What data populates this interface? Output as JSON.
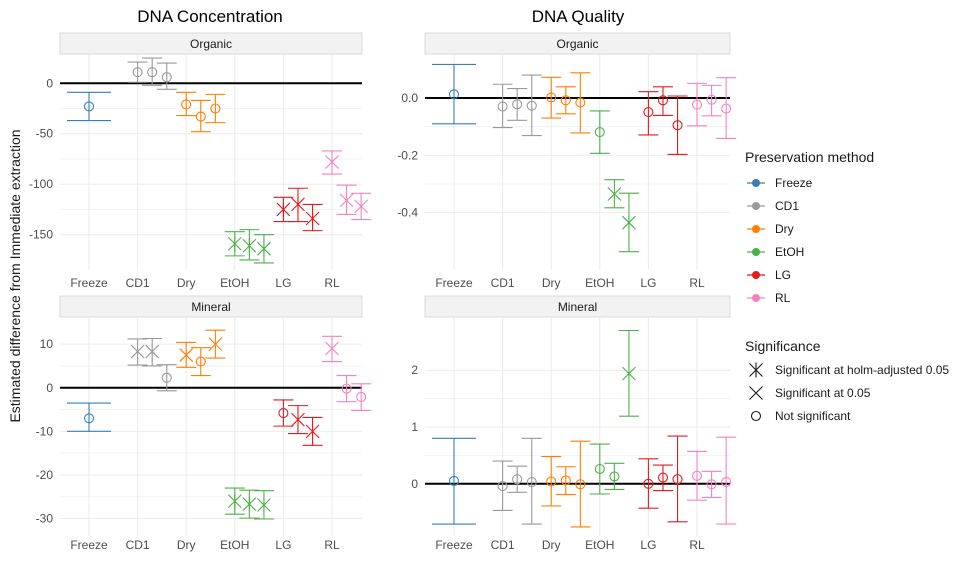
{
  "figure": {
    "ylabel": "Estimated difference from Immediate extraction",
    "legend": {
      "method_title": "Preservation method",
      "method_items": [
        {
          "label": "Freeze",
          "color": "#377eb8"
        },
        {
          "label": "CD1",
          "color": "#999999"
        },
        {
          "label": "Dry",
          "color": "#ff7f00"
        },
        {
          "label": "EtOH",
          "color": "#4daf4a"
        },
        {
          "label": "LG",
          "color": "#e41a1c"
        },
        {
          "label": "RL",
          "color": "#f781bf"
        }
      ],
      "sig_title": "Significance",
      "sig_items": [
        {
          "label": "Significant at holm-adjusted 0.05",
          "shape": "asterisk"
        },
        {
          "label": "Significant at 0.05",
          "shape": "cross"
        },
        {
          "label": "Not significant",
          "shape": "circle"
        }
      ]
    }
  },
  "chart_data": [
    {
      "type": "scatter",
      "title": "DNA Concentration",
      "facet": "Organic",
      "categories": [
        "Freeze",
        "CD1",
        "Dry",
        "EtOH",
        "LG",
        "RL"
      ],
      "ylim": [
        -185,
        28
      ],
      "yticks": [
        0,
        -50,
        -100,
        -150
      ],
      "points": [
        {
          "method": "Freeze",
          "x": 0,
          "y": -23,
          "lo": -37,
          "hi": -9,
          "sig": "circle"
        },
        {
          "method": "CD1",
          "x": 1,
          "y": 11,
          "lo": 1,
          "hi": 21,
          "sig": "circle"
        },
        {
          "method": "CD1",
          "x": 1.3,
          "y": 11,
          "lo": -2,
          "hi": 25,
          "sig": "circle"
        },
        {
          "method": "CD1",
          "x": 1.6,
          "y": 6,
          "lo": -6,
          "hi": 20,
          "sig": "circle"
        },
        {
          "method": "Dry",
          "x": 2.0,
          "y": -21,
          "lo": -32,
          "hi": -9,
          "sig": "circle"
        },
        {
          "method": "Dry",
          "x": 2.3,
          "y": -33,
          "lo": -48,
          "hi": -17,
          "sig": "circle"
        },
        {
          "method": "Dry",
          "x": 2.6,
          "y": -25,
          "lo": -39,
          "hi": -11,
          "sig": "circle"
        },
        {
          "method": "EtOH",
          "x": 3.0,
          "y": -159,
          "lo": -171,
          "hi": -147,
          "sig": "asterisk"
        },
        {
          "method": "EtOH",
          "x": 3.3,
          "y": -161,
          "lo": -175,
          "hi": -145,
          "sig": "asterisk"
        },
        {
          "method": "EtOH",
          "x": 3.6,
          "y": -164,
          "lo": -178,
          "hi": -150,
          "sig": "asterisk"
        },
        {
          "method": "LG",
          "x": 4.0,
          "y": -125,
          "lo": -137,
          "hi": -113,
          "sig": "asterisk"
        },
        {
          "method": "LG",
          "x": 4.3,
          "y": -120,
          "lo": -137,
          "hi": -104,
          "sig": "asterisk"
        },
        {
          "method": "LG",
          "x": 4.6,
          "y": -134,
          "lo": -146,
          "hi": -120,
          "sig": "asterisk"
        },
        {
          "method": "RL",
          "x": 5.0,
          "y": -78,
          "lo": -90,
          "hi": -67,
          "sig": "cross"
        },
        {
          "method": "RL",
          "x": 5.3,
          "y": -116,
          "lo": -130,
          "hi": -101,
          "sig": "cross"
        },
        {
          "method": "RL",
          "x": 5.6,
          "y": -122,
          "lo": -135,
          "hi": -109,
          "sig": "cross"
        }
      ]
    },
    {
      "type": "scatter",
      "title": "",
      "facet": "Mineral",
      "categories": [
        "Freeze",
        "CD1",
        "Dry",
        "EtOH",
        "LG",
        "RL"
      ],
      "ylim": [
        -34,
        16
      ],
      "yticks": [
        10,
        0,
        -10,
        -20,
        -30
      ],
      "points": [
        {
          "method": "Freeze",
          "x": 0,
          "y": -7,
          "lo": -10,
          "hi": -3.5,
          "sig": "circle"
        },
        {
          "method": "CD1",
          "x": 1,
          "y": 8.3,
          "lo": 5.2,
          "hi": 11.2,
          "sig": "cross"
        },
        {
          "method": "CD1",
          "x": 1.3,
          "y": 8.3,
          "lo": 5.0,
          "hi": 11.3,
          "sig": "cross"
        },
        {
          "method": "CD1",
          "x": 1.6,
          "y": 2.3,
          "lo": -0.7,
          "hi": 5.3,
          "sig": "circle"
        },
        {
          "method": "Dry",
          "x": 2.0,
          "y": 7.5,
          "lo": 4.7,
          "hi": 10.4,
          "sig": "cross"
        },
        {
          "method": "Dry",
          "x": 2.3,
          "y": 6.0,
          "lo": 2.8,
          "hi": 9.2,
          "sig": "circle"
        },
        {
          "method": "Dry",
          "x": 2.6,
          "y": 10.0,
          "lo": 6.8,
          "hi": 13.2,
          "sig": "cross"
        },
        {
          "method": "EtOH",
          "x": 3.0,
          "y": -26,
          "lo": -29,
          "hi": -23,
          "sig": "asterisk"
        },
        {
          "method": "EtOH",
          "x": 3.3,
          "y": -26.7,
          "lo": -29.9,
          "hi": -23.5,
          "sig": "asterisk"
        },
        {
          "method": "EtOH",
          "x": 3.6,
          "y": -26.9,
          "lo": -30.1,
          "hi": -23.6,
          "sig": "asterisk"
        },
        {
          "method": "LG",
          "x": 4.0,
          "y": -5.8,
          "lo": -8.8,
          "hi": -2.8,
          "sig": "circle"
        },
        {
          "method": "LG",
          "x": 4.3,
          "y": -7.3,
          "lo": -10.5,
          "hi": -4.1,
          "sig": "cross"
        },
        {
          "method": "LG",
          "x": 4.6,
          "y": -10.0,
          "lo": -13.2,
          "hi": -6.8,
          "sig": "cross"
        },
        {
          "method": "RL",
          "x": 5.0,
          "y": 9.0,
          "lo": 6.0,
          "hi": 11.8,
          "sig": "cross"
        },
        {
          "method": "RL",
          "x": 5.3,
          "y": -0.2,
          "lo": -3.2,
          "hi": 2.8,
          "sig": "circle"
        },
        {
          "method": "RL",
          "x": 5.6,
          "y": -2.1,
          "lo": -5.2,
          "hi": 0.9,
          "sig": "circle"
        }
      ]
    },
    {
      "type": "scatter",
      "title": "DNA Quality",
      "facet": "Organic",
      "categories": [
        "Freeze",
        "CD1",
        "Dry",
        "EtOH",
        "LG",
        "RL"
      ],
      "ylim": [
        -0.6,
        0.15
      ],
      "yticks": [
        0.0,
        -0.2,
        -0.4
      ],
      "points": [
        {
          "method": "Freeze",
          "x": 0,
          "y": 0.013,
          "lo": -0.09,
          "hi": 0.117,
          "sig": "circle"
        },
        {
          "method": "CD1",
          "x": 1,
          "y": -0.03,
          "lo": -0.103,
          "hi": 0.048,
          "sig": "circle"
        },
        {
          "method": "CD1",
          "x": 1.3,
          "y": -0.022,
          "lo": -0.078,
          "hi": 0.033,
          "sig": "circle"
        },
        {
          "method": "CD1",
          "x": 1.6,
          "y": -0.027,
          "lo": -0.131,
          "hi": 0.08,
          "sig": "circle"
        },
        {
          "method": "Dry",
          "x": 2.0,
          "y": 0.002,
          "lo": -0.07,
          "hi": 0.072,
          "sig": "circle"
        },
        {
          "method": "Dry",
          "x": 2.3,
          "y": -0.008,
          "lo": -0.055,
          "hi": 0.039,
          "sig": "circle"
        },
        {
          "method": "Dry",
          "x": 2.6,
          "y": -0.016,
          "lo": -0.122,
          "hi": 0.088,
          "sig": "circle"
        },
        {
          "method": "EtOH",
          "x": 3.0,
          "y": -0.119,
          "lo": -0.193,
          "hi": -0.045,
          "sig": "circle"
        },
        {
          "method": "EtOH",
          "x": 3.3,
          "y": -0.335,
          "lo": -0.383,
          "hi": -0.285,
          "sig": "cross"
        },
        {
          "method": "EtOH",
          "x": 3.6,
          "y": -0.435,
          "lo": -0.536,
          "hi": -0.332,
          "sig": "cross"
        },
        {
          "method": "LG",
          "x": 4.0,
          "y": -0.049,
          "lo": -0.129,
          "hi": 0.022,
          "sig": "circle"
        },
        {
          "method": "LG",
          "x": 4.3,
          "y": -0.008,
          "lo": -0.061,
          "hi": 0.039,
          "sig": "circle"
        },
        {
          "method": "LG",
          "x": 4.6,
          "y": -0.095,
          "lo": -0.197,
          "hi": 0.007,
          "sig": "circle"
        },
        {
          "method": "RL",
          "x": 5.0,
          "y": -0.023,
          "lo": -0.097,
          "hi": 0.051,
          "sig": "circle"
        },
        {
          "method": "RL",
          "x": 5.3,
          "y": -0.006,
          "lo": -0.062,
          "hi": 0.044,
          "sig": "circle"
        },
        {
          "method": "RL",
          "x": 5.6,
          "y": -0.037,
          "lo": -0.141,
          "hi": 0.071,
          "sig": "circle"
        }
      ]
    },
    {
      "type": "scatter",
      "title": "",
      "facet": "Mineral",
      "categories": [
        "Freeze",
        "CD1",
        "Dry",
        "EtOH",
        "LG",
        "RL"
      ],
      "ylim": [
        -0.92,
        2.92
      ],
      "yticks": [
        2,
        1,
        0
      ],
      "points": [
        {
          "method": "Freeze",
          "x": 0,
          "y": 0.05,
          "lo": -0.71,
          "hi": 0.8,
          "sig": "circle"
        },
        {
          "method": "CD1",
          "x": 1,
          "y": -0.04,
          "lo": -0.47,
          "hi": 0.4,
          "sig": "circle"
        },
        {
          "method": "CD1",
          "x": 1.3,
          "y": 0.08,
          "lo": -0.15,
          "hi": 0.31,
          "sig": "circle"
        },
        {
          "method": "CD1",
          "x": 1.6,
          "y": 0.03,
          "lo": -0.71,
          "hi": 0.8,
          "sig": "circle"
        },
        {
          "method": "Dry",
          "x": 2.0,
          "y": 0.04,
          "lo": -0.39,
          "hi": 0.48,
          "sig": "circle"
        },
        {
          "method": "Dry",
          "x": 2.3,
          "y": 0.06,
          "lo": -0.19,
          "hi": 0.3,
          "sig": "circle"
        },
        {
          "method": "Dry",
          "x": 2.6,
          "y": -0.01,
          "lo": -0.76,
          "hi": 0.75,
          "sig": "circle"
        },
        {
          "method": "EtOH",
          "x": 3.0,
          "y": 0.26,
          "lo": -0.18,
          "hi": 0.7,
          "sig": "circle"
        },
        {
          "method": "EtOH",
          "x": 3.3,
          "y": 0.13,
          "lo": -0.1,
          "hi": 0.36,
          "sig": "circle"
        },
        {
          "method": "EtOH",
          "x": 3.6,
          "y": 1.94,
          "lo": 1.19,
          "hi": 2.7,
          "sig": "cross"
        },
        {
          "method": "LG",
          "x": 4.0,
          "y": 0.0,
          "lo": -0.43,
          "hi": 0.44,
          "sig": "circle"
        },
        {
          "method": "LG",
          "x": 4.3,
          "y": 0.11,
          "lo": -0.12,
          "hi": 0.33,
          "sig": "circle"
        },
        {
          "method": "LG",
          "x": 4.6,
          "y": 0.08,
          "lo": -0.67,
          "hi": 0.84,
          "sig": "circle"
        },
        {
          "method": "RL",
          "x": 5.0,
          "y": 0.14,
          "lo": -0.29,
          "hi": 0.57,
          "sig": "circle"
        },
        {
          "method": "RL",
          "x": 5.3,
          "y": -0.01,
          "lo": -0.24,
          "hi": 0.22,
          "sig": "circle"
        },
        {
          "method": "RL",
          "x": 5.6,
          "y": 0.03,
          "lo": -0.71,
          "hi": 0.82,
          "sig": "circle"
        }
      ]
    }
  ]
}
